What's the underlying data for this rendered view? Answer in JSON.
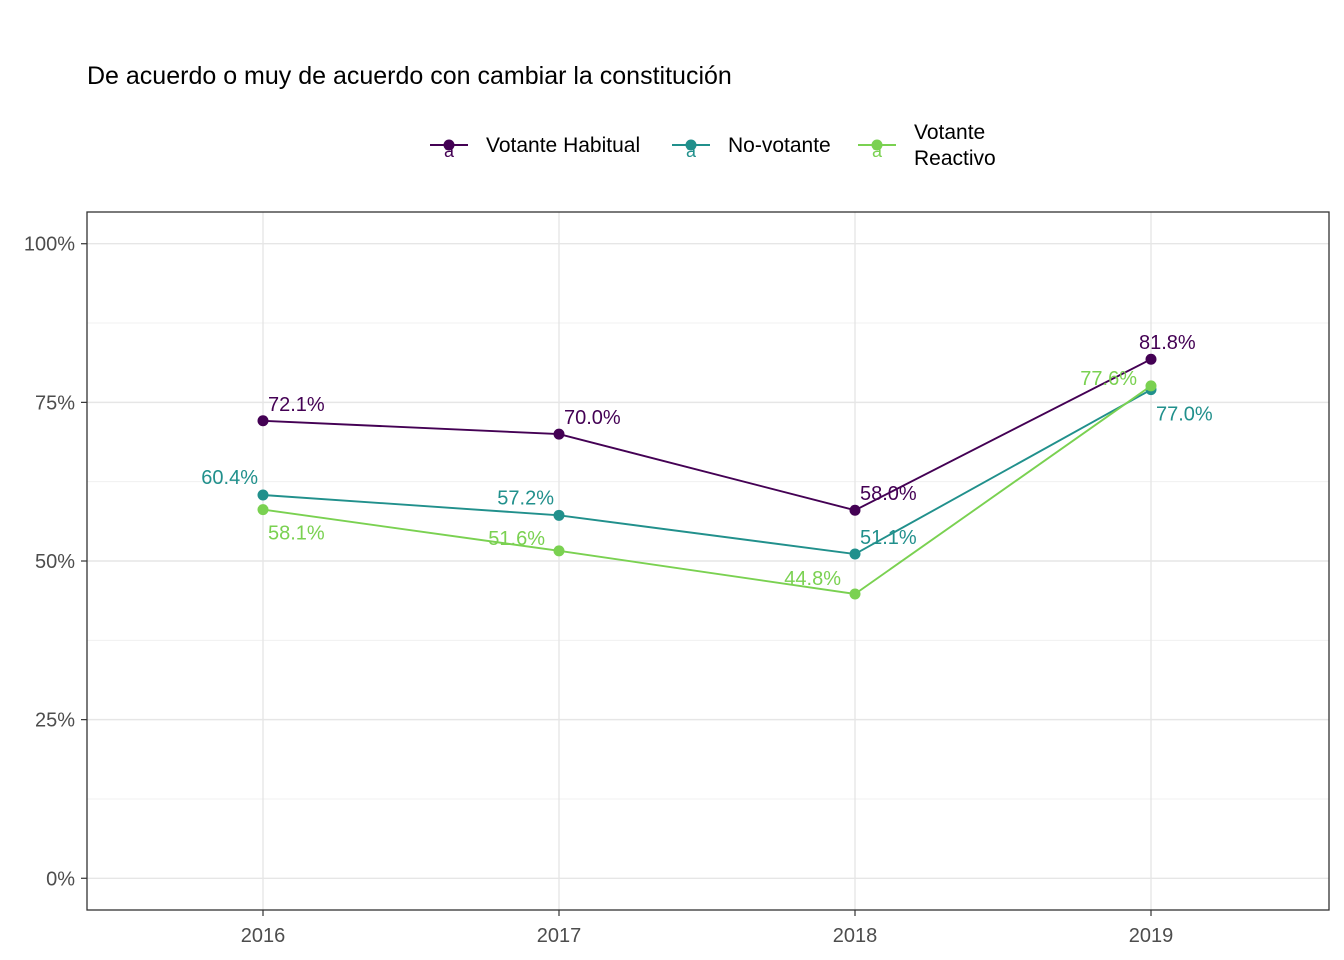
{
  "chart_data": {
    "type": "line",
    "title": "De acuerdo o muy de acuerdo con cambiar la constitución",
    "xlabel": "",
    "ylabel": "",
    "x": [
      "2016",
      "2017",
      "2018",
      "2019"
    ],
    "ylim": [
      -0.05,
      1.05
    ],
    "y_ticks": [
      {
        "value": 0,
        "label": "0%"
      },
      {
        "value": 0.25,
        "label": "25%"
      },
      {
        "value": 0.5,
        "label": "50%"
      },
      {
        "value": 0.75,
        "label": "75%"
      },
      {
        "value": 1.0,
        "label": "100%"
      }
    ],
    "grid": true,
    "legend_position": "top",
    "series": [
      {
        "name": "Votante Habitual",
        "legend_lines": [
          "Votante Habitual"
        ],
        "color": "#440154",
        "values": [
          0.721,
          0.7,
          0.58,
          0.818
        ],
        "labels": [
          "72.1%",
          "70.0%",
          "58.0%",
          "81.8%"
        ]
      },
      {
        "name": "No-votante",
        "legend_lines": [
          "No-votante"
        ],
        "color": "#21908C",
        "values": [
          0.604,
          0.572,
          0.511,
          0.77
        ],
        "labels": [
          "60.4%",
          "57.2%",
          "51.1%",
          "77.0%"
        ]
      },
      {
        "name": "Votante Reactivo",
        "legend_lines": [
          "Votante",
          "Reactivo"
        ],
        "color": "#7AD151",
        "values": [
          0.581,
          0.516,
          0.448,
          0.776
        ],
        "labels": [
          "58.1%",
          "51.6%",
          "44.8%",
          "77.6%"
        ]
      }
    ]
  }
}
